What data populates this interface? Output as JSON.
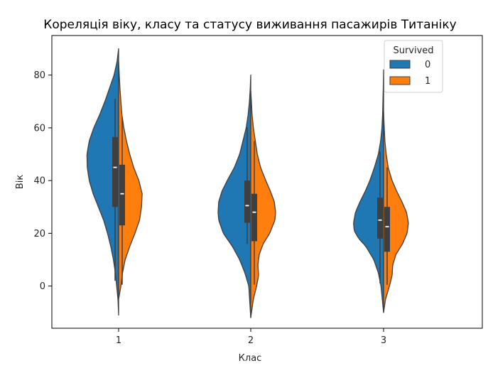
{
  "chart_data": {
    "type": "violin",
    "title": "Кореляція віку, класу та статусу виживання пасажирів Титаніку",
    "xlabel": "Клас",
    "ylabel": "Вік",
    "categories": [
      "1",
      "2",
      "3"
    ],
    "yticks": [
      0,
      20,
      40,
      60,
      80
    ],
    "ylim": [
      -16,
      95
    ],
    "split": true,
    "legend": {
      "title": "Survived",
      "placement": "top-right",
      "entries": [
        {
          "label": "0",
          "color": "#1f77b4"
        },
        {
          "label": "1",
          "color": "#ff7f0e"
        }
      ]
    },
    "series": [
      {
        "name": "0",
        "color": "#1f77b4",
        "violins": [
          {
            "category": "1",
            "range": [
              -11,
              90
            ],
            "density": [
              [
                -11,
                0.0
              ],
              [
                -5,
                0.02
              ],
              [
                0,
                0.06
              ],
              [
                5,
                0.1
              ],
              [
                10,
                0.16
              ],
              [
                15,
                0.24
              ],
              [
                20,
                0.34
              ],
              [
                25,
                0.46
              ],
              [
                30,
                0.62
              ],
              [
                35,
                0.78
              ],
              [
                40,
                0.9
              ],
              [
                45,
                0.96
              ],
              [
                50,
                0.97
              ],
              [
                55,
                0.9
              ],
              [
                60,
                0.76
              ],
              [
                65,
                0.58
              ],
              [
                70,
                0.42
              ],
              [
                75,
                0.28
              ],
              [
                80,
                0.14
              ],
              [
                85,
                0.05
              ],
              [
                90,
                0.0
              ]
            ],
            "median": 45,
            "q1": 30,
            "q3": 56.5,
            "whisker": [
              2,
              71
            ]
          },
          {
            "category": "2",
            "range": [
              -12,
              80
            ],
            "density": [
              [
                -12,
                0.0
              ],
              [
                0,
                0.06
              ],
              [
                5,
                0.18
              ],
              [
                10,
                0.34
              ],
              [
                15,
                0.56
              ],
              [
                20,
                0.84
              ],
              [
                25,
                0.98
              ],
              [
                28,
                1.0
              ],
              [
                32,
                0.98
              ],
              [
                36,
                0.88
              ],
              [
                40,
                0.72
              ],
              [
                45,
                0.5
              ],
              [
                50,
                0.34
              ],
              [
                55,
                0.24
              ],
              [
                60,
                0.14
              ],
              [
                65,
                0.08
              ],
              [
                70,
                0.04
              ],
              [
                75,
                0.015
              ],
              [
                80,
                0.0
              ]
            ],
            "median": 30.5,
            "q1": 24,
            "q3": 40,
            "whisker": [
              16,
              60
            ]
          },
          {
            "category": "3",
            "range": [
              -10,
              82
            ],
            "density": [
              [
                -10,
                0.0
              ],
              [
                -5,
                0.04
              ],
              [
                0,
                0.08
              ],
              [
                5,
                0.16
              ],
              [
                10,
                0.3
              ],
              [
                15,
                0.54
              ],
              [
                18,
                0.76
              ],
              [
                21,
                0.9
              ],
              [
                24,
                0.92
              ],
              [
                28,
                0.86
              ],
              [
                32,
                0.72
              ],
              [
                36,
                0.56
              ],
              [
                40,
                0.42
              ],
              [
                45,
                0.28
              ],
              [
                50,
                0.16
              ],
              [
                55,
                0.09
              ],
              [
                60,
                0.05
              ],
              [
                65,
                0.03
              ],
              [
                70,
                0.02
              ],
              [
                75,
                0.01
              ],
              [
                82,
                0.0
              ]
            ],
            "median": 25,
            "q1": 18,
            "q3": 33.5,
            "whisker": [
              1,
              51
            ]
          }
        ]
      },
      {
        "name": "1",
        "color": "#ff7f0e",
        "violins": [
          {
            "category": "1",
            "range": [
              -5,
              85
            ],
            "density": [
              [
                -5,
                0.0
              ],
              [
                0,
                0.07
              ],
              [
                5,
                0.12
              ],
              [
                10,
                0.2
              ],
              [
                15,
                0.34
              ],
              [
                20,
                0.5
              ],
              [
                25,
                0.64
              ],
              [
                30,
                0.7
              ],
              [
                35,
                0.72
              ],
              [
                40,
                0.62
              ],
              [
                45,
                0.46
              ],
              [
                50,
                0.34
              ],
              [
                55,
                0.24
              ],
              [
                60,
                0.16
              ],
              [
                65,
                0.1
              ],
              [
                70,
                0.07
              ],
              [
                75,
                0.04
              ],
              [
                80,
                0.02
              ],
              [
                85,
                0.0
              ]
            ],
            "median": 35,
            "q1": 23,
            "q3": 46,
            "whisker": [
              0.5,
              64
            ]
          },
          {
            "category": "2",
            "range": [
              -12,
              74
            ],
            "density": [
              [
                -12,
                0.0
              ],
              [
                -5,
                0.08
              ],
              [
                0,
                0.18
              ],
              [
                4,
                0.24
              ],
              [
                8,
                0.22
              ],
              [
                12,
                0.26
              ],
              [
                16,
                0.38
              ],
              [
                20,
                0.58
              ],
              [
                25,
                0.74
              ],
              [
                28,
                0.76
              ],
              [
                32,
                0.72
              ],
              [
                36,
                0.6
              ],
              [
                40,
                0.46
              ],
              [
                45,
                0.3
              ],
              [
                50,
                0.2
              ],
              [
                55,
                0.14
              ],
              [
                60,
                0.08
              ],
              [
                65,
                0.04
              ],
              [
                70,
                0.02
              ],
              [
                74,
                0.0
              ]
            ],
            "median": 28,
            "q1": 17,
            "q3": 35,
            "whisker": [
              0.5,
              55
            ]
          },
          {
            "category": "3",
            "range": [
              -10,
              66
            ],
            "density": [
              [
                -10,
                0.0
              ],
              [
                -5,
                0.06
              ],
              [
                0,
                0.18
              ],
              [
                4,
                0.26
              ],
              [
                8,
                0.28
              ],
              [
                12,
                0.38
              ],
              [
                16,
                0.58
              ],
              [
                20,
                0.72
              ],
              [
                24,
                0.76
              ],
              [
                28,
                0.7
              ],
              [
                32,
                0.56
              ],
              [
                36,
                0.4
              ],
              [
                40,
                0.26
              ],
              [
                45,
                0.14
              ],
              [
                50,
                0.08
              ],
              [
                55,
                0.04
              ],
              [
                60,
                0.02
              ],
              [
                66,
                0.0
              ]
            ],
            "median": 22.5,
            "q1": 13,
            "q3": 30,
            "whisker": [
              0.5,
              45
            ]
          }
        ]
      }
    ]
  }
}
